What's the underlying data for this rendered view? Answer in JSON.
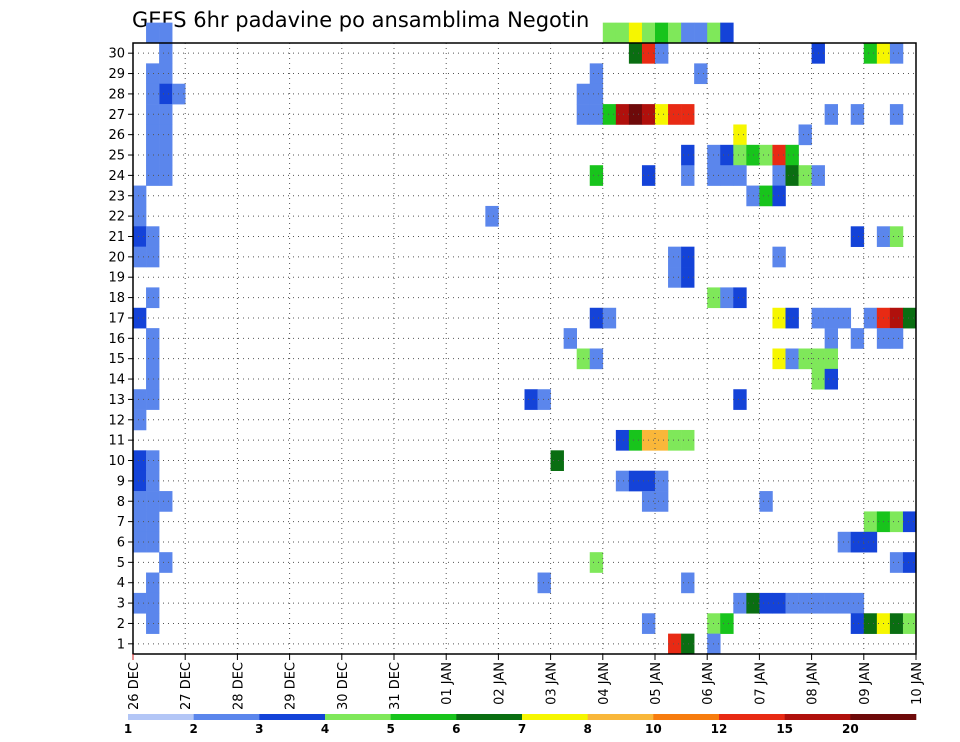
{
  "chart_data": {
    "type": "heatmap",
    "title": "GEFS 6hr padavine po ansamblima Negotin",
    "xlabel": "",
    "ylabel": "",
    "x_tick_labels": [
      "26 DEC",
      "27 DEC",
      "28 DEC",
      "29 DEC",
      "30 DEC",
      "31 DEC",
      "01 JAN",
      "02 JAN",
      "03 JAN",
      "04 JAN",
      "05 JAN",
      "06 JAN",
      "07 JAN",
      "08 JAN",
      "09 JAN",
      "10 JAN"
    ],
    "x_unit": "6h steps from 26 DEC 00Z",
    "xlim": [
      0,
      60
    ],
    "y_tick_labels": [
      1,
      2,
      3,
      4,
      5,
      6,
      7,
      8,
      9,
      10,
      11,
      12,
      13,
      14,
      15,
      16,
      17,
      18,
      19,
      20,
      21,
      22,
      23,
      24,
      25,
      26,
      27,
      28,
      29,
      30
    ],
    "ylim": [
      0,
      30
    ],
    "grid": true,
    "colorbar": {
      "placement": "bottom",
      "labels": [
        "1",
        "2",
        "3",
        "4",
        "5",
        "6",
        "7",
        "8",
        "10",
        "12",
        "15",
        "20"
      ],
      "colors": [
        "#b3c6f6",
        "#5b86ec",
        "#1443d8",
        "#7fe85a",
        "#18c41c",
        "#0a6e12",
        "#f6f600",
        "#f9b73a",
        "#f77c0e",
        "#e82a14",
        "#b0100c",
        "#6e0a0a"
      ]
    },
    "cells": [
      [
        30,
        1,
        1
      ],
      [
        30,
        2,
        1
      ],
      [
        29,
        2,
        1
      ],
      [
        28,
        1,
        1
      ],
      [
        28,
        2,
        1
      ],
      [
        27,
        2,
        2
      ],
      [
        27,
        1,
        1
      ],
      [
        27,
        3,
        1
      ],
      [
        26,
        1,
        1
      ],
      [
        26,
        2,
        1
      ],
      [
        25,
        1,
        1
      ],
      [
        25,
        2,
        1
      ],
      [
        24,
        1,
        1
      ],
      [
        24,
        2,
        1
      ],
      [
        23,
        1,
        1
      ],
      [
        23,
        2,
        1
      ],
      [
        22,
        0,
        1
      ],
      [
        21,
        0,
        1
      ],
      [
        20,
        0,
        2
      ],
      [
        20,
        1,
        1
      ],
      [
        19,
        0,
        1
      ],
      [
        19,
        1,
        1
      ],
      [
        17,
        1,
        1
      ],
      [
        16,
        0,
        2
      ],
      [
        15,
        1,
        1
      ],
      [
        14,
        1,
        1
      ],
      [
        13,
        1,
        1
      ],
      [
        12,
        0,
        1
      ],
      [
        12,
        1,
        1
      ],
      [
        11,
        0,
        1
      ],
      [
        9,
        0,
        2
      ],
      [
        9,
        1,
        1
      ],
      [
        8,
        0,
        2
      ],
      [
        8,
        1,
        1
      ],
      [
        7,
        0,
        1
      ],
      [
        7,
        1,
        1
      ],
      [
        7,
        2,
        1
      ],
      [
        6,
        0,
        1
      ],
      [
        6,
        1,
        1
      ],
      [
        5,
        0,
        1
      ],
      [
        5,
        1,
        1
      ],
      [
        4,
        2,
        1
      ],
      [
        3,
        1,
        1
      ],
      [
        2,
        0,
        1
      ],
      [
        2,
        1,
        1
      ],
      [
        1,
        1,
        1
      ],
      [
        30,
        36,
        3
      ],
      [
        30,
        37,
        3
      ],
      [
        30,
        38,
        6
      ],
      [
        30,
        39,
        3
      ],
      [
        30,
        40,
        4
      ],
      [
        30,
        41,
        3
      ],
      [
        30,
        42,
        1
      ],
      [
        30,
        43,
        1
      ],
      [
        30,
        44,
        3
      ],
      [
        30,
        45,
        2
      ],
      [
        29,
        38,
        5
      ],
      [
        29,
        39,
        9
      ],
      [
        29,
        40,
        1
      ],
      [
        29,
        52,
        2
      ],
      [
        29,
        56,
        4
      ],
      [
        29,
        57,
        6
      ],
      [
        29,
        58,
        1
      ],
      [
        28,
        35,
        1
      ],
      [
        28,
        43,
        1
      ],
      [
        27,
        34,
        1
      ],
      [
        27,
        35,
        1
      ],
      [
        26,
        34,
        1
      ],
      [
        26,
        35,
        1
      ],
      [
        26,
        36,
        4
      ],
      [
        26,
        37,
        10
      ],
      [
        26,
        38,
        11
      ],
      [
        26,
        39,
        10
      ],
      [
        26,
        40,
        6
      ],
      [
        26,
        41,
        9
      ],
      [
        26,
        42,
        9
      ],
      [
        26,
        53,
        1
      ],
      [
        26,
        55,
        1
      ],
      [
        26,
        58,
        1
      ],
      [
        25,
        46,
        6
      ],
      [
        25,
        51,
        1
      ],
      [
        24,
        42,
        2
      ],
      [
        24,
        44,
        1
      ],
      [
        24,
        45,
        2
      ],
      [
        24,
        46,
        3
      ],
      [
        24,
        47,
        4
      ],
      [
        24,
        48,
        3
      ],
      [
        24,
        49,
        9
      ],
      [
        24,
        50,
        4
      ],
      [
        23,
        35,
        4
      ],
      [
        23,
        39,
        2
      ],
      [
        23,
        42,
        1
      ],
      [
        23,
        44,
        1
      ],
      [
        23,
        45,
        1
      ],
      [
        23,
        46,
        1
      ],
      [
        23,
        49,
        1
      ],
      [
        23,
        50,
        5
      ],
      [
        23,
        51,
        3
      ],
      [
        23,
        52,
        1
      ],
      [
        22,
        47,
        1
      ],
      [
        22,
        48,
        4
      ],
      [
        22,
        49,
        2
      ],
      [
        21,
        27,
        1
      ],
      [
        20,
        55,
        2
      ],
      [
        20,
        57,
        1
      ],
      [
        20,
        58,
        3
      ],
      [
        19,
        41,
        1
      ],
      [
        19,
        42,
        2
      ],
      [
        19,
        49,
        1
      ],
      [
        18,
        41,
        1
      ],
      [
        18,
        42,
        2
      ],
      [
        17,
        44,
        3
      ],
      [
        17,
        45,
        1
      ],
      [
        17,
        46,
        2
      ],
      [
        16,
        35,
        2
      ],
      [
        16,
        36,
        1
      ],
      [
        16,
        49,
        6
      ],
      [
        16,
        50,
        2
      ],
      [
        16,
        52,
        1
      ],
      [
        16,
        53,
        1
      ],
      [
        16,
        54,
        1
      ],
      [
        16,
        56,
        1
      ],
      [
        16,
        57,
        9
      ],
      [
        16,
        58,
        10
      ],
      [
        16,
        59,
        5
      ],
      [
        15,
        33,
        1
      ],
      [
        15,
        53,
        1
      ],
      [
        15,
        55,
        1
      ],
      [
        15,
        57,
        1
      ],
      [
        15,
        58,
        1
      ],
      [
        14,
        34,
        3
      ],
      [
        14,
        35,
        1
      ],
      [
        14,
        49,
        6
      ],
      [
        14,
        50,
        1
      ],
      [
        14,
        51,
        3
      ],
      [
        14,
        52,
        3
      ],
      [
        14,
        53,
        3
      ],
      [
        13,
        52,
        3
      ],
      [
        13,
        53,
        2
      ],
      [
        12,
        30,
        2
      ],
      [
        12,
        31,
        1
      ],
      [
        12,
        46,
        2
      ],
      [
        10,
        37,
        2
      ],
      [
        10,
        38,
        4
      ],
      [
        10,
        39,
        7
      ],
      [
        10,
        40,
        7
      ],
      [
        10,
        41,
        3
      ],
      [
        10,
        42,
        3
      ],
      [
        9,
        32,
        5
      ],
      [
        8,
        37,
        1
      ],
      [
        8,
        38,
        2
      ],
      [
        8,
        39,
        2
      ],
      [
        8,
        40,
        1
      ],
      [
        7,
        39,
        1
      ],
      [
        7,
        40,
        1
      ],
      [
        7,
        48,
        1
      ],
      [
        6,
        56,
        3
      ],
      [
        6,
        57,
        4
      ],
      [
        6,
        58,
        3
      ],
      [
        6,
        59,
        2
      ],
      [
        5,
        54,
        1
      ],
      [
        5,
        55,
        2
      ],
      [
        5,
        56,
        2
      ],
      [
        4,
        35,
        3
      ],
      [
        4,
        58,
        1
      ],
      [
        4,
        59,
        2
      ],
      [
        3,
        31,
        1
      ],
      [
        3,
        42,
        1
      ],
      [
        2,
        46,
        1
      ],
      [
        2,
        47,
        5
      ],
      [
        2,
        48,
        2
      ],
      [
        2,
        49,
        2
      ],
      [
        2,
        50,
        1
      ],
      [
        2,
        51,
        1
      ],
      [
        2,
        52,
        1
      ],
      [
        2,
        53,
        1
      ],
      [
        2,
        54,
        1
      ],
      [
        2,
        55,
        1
      ],
      [
        1,
        39,
        1
      ],
      [
        1,
        44,
        3
      ],
      [
        1,
        45,
        4
      ],
      [
        1,
        55,
        2
      ],
      [
        1,
        56,
        5
      ],
      [
        1,
        57,
        6
      ],
      [
        1,
        58,
        5
      ],
      [
        1,
        59,
        3
      ],
      [
        0,
        41,
        9
      ],
      [
        0,
        42,
        5
      ],
      [
        0,
        44,
        1
      ]
    ]
  }
}
